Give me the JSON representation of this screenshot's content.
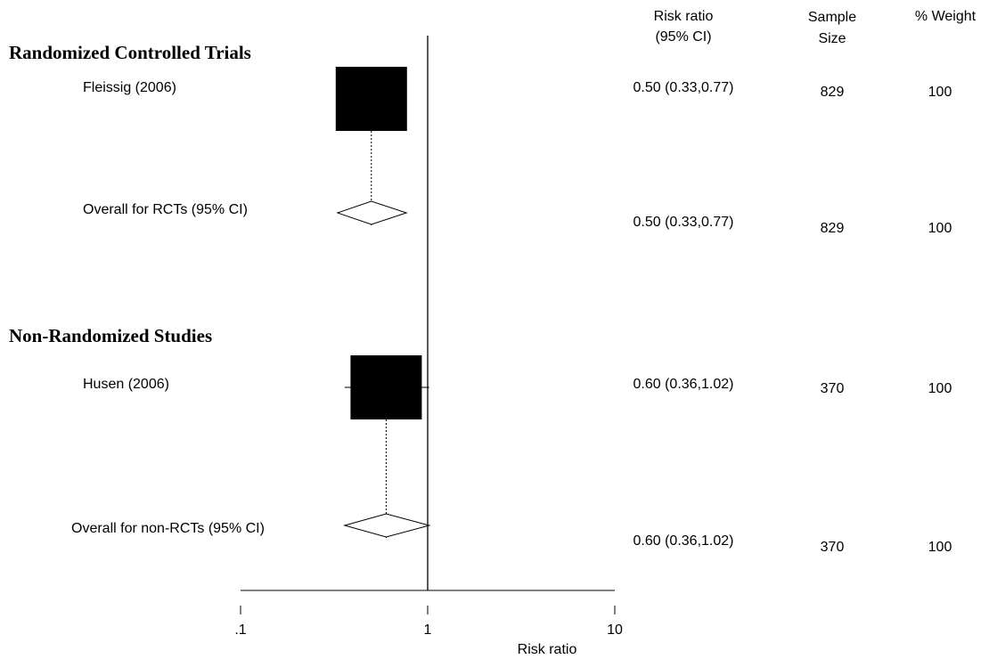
{
  "columns": {
    "risk_ratio": {
      "line1": "Risk ratio",
      "line2": "(95% CI)"
    },
    "sample_size": {
      "line1": "Sample",
      "line2": "Size"
    },
    "weight": {
      "line1": "% Weight"
    }
  },
  "chart_data": {
    "type": "forest",
    "x_scale": "log",
    "xlim": [
      0.1,
      10
    ],
    "null_line": 1,
    "xlabel": "Risk ratio",
    "xticks": [
      {
        "value": 0.1,
        "label": ".1"
      },
      {
        "value": 1,
        "label": "1"
      },
      {
        "value": 10,
        "label": "10"
      }
    ],
    "groups": [
      {
        "title": "Randomized Controlled Trials",
        "studies": [
          {
            "label": "Fleissig (2006)",
            "rr": 0.5,
            "lo": 0.33,
            "hi": 0.77,
            "ci_text": "0.50 (0.33,0.77)",
            "sample_size": "829",
            "weight": "100"
          }
        ],
        "overall": {
          "label": "Overall for RCTs (95% CI)",
          "rr": 0.5,
          "lo": 0.33,
          "hi": 0.77,
          "ci_text": "0.50 (0.33,0.77)",
          "sample_size": "829",
          "weight": "100"
        }
      },
      {
        "title": "Non-Randomized Studies",
        "studies": [
          {
            "label": "Husen (2006)",
            "rr": 0.6,
            "lo": 0.36,
            "hi": 1.02,
            "ci_text": "0.60 (0.36,1.02)",
            "sample_size": "370",
            "weight": "100"
          }
        ],
        "overall": {
          "label": "Overall for non-RCTs (95% CI)",
          "rr": 0.6,
          "lo": 0.36,
          "hi": 1.02,
          "ci_text": "0.60 (0.36,1.02)",
          "sample_size": "370",
          "weight": "100"
        }
      }
    ]
  }
}
